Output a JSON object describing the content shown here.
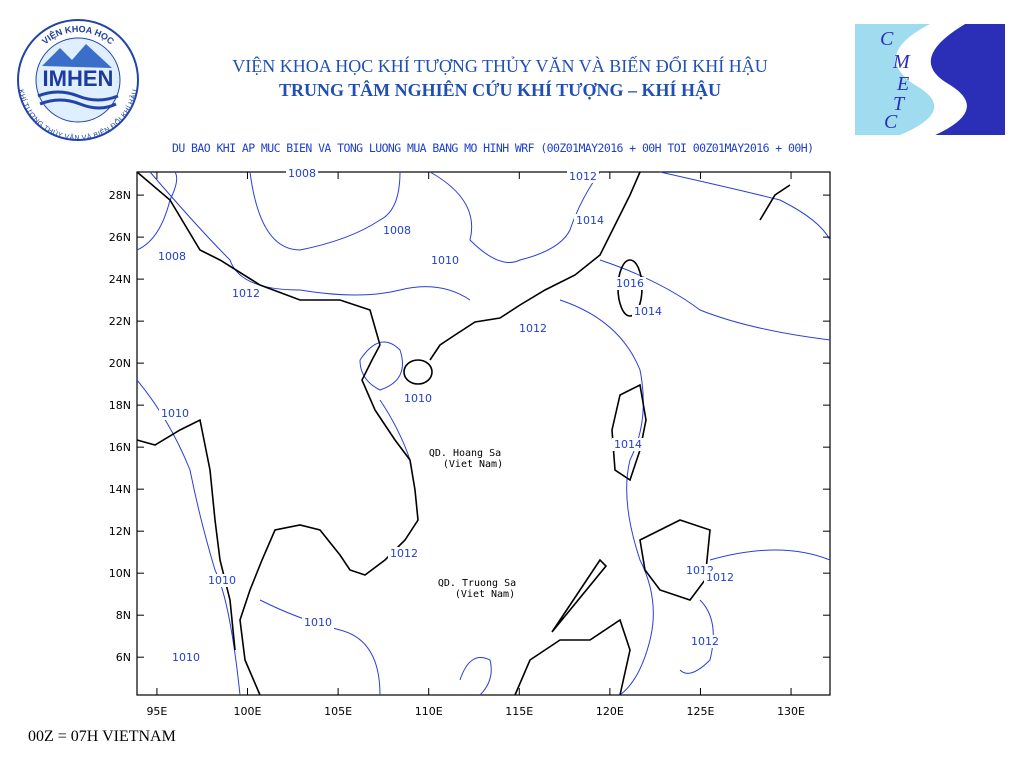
{
  "header": {
    "institute": "VIỆN KHOA HỌC KHÍ TƯỢNG THỦY VĂN VÀ BIẾN ĐỔI KHÍ HẬU",
    "center": "TRUNG TÂM NGHIÊN CỨU KHÍ TƯỢNG – KHÍ HẬU"
  },
  "logos": {
    "imhen": {
      "name": "IMHEN",
      "arc_top": "VIỆN KHOA HỌC",
      "arc_bottom": "KHÍ TƯỢNG THỦY VĂN VÀ BIẾN ĐỔI KHÍ HẬU"
    },
    "cmetc": [
      "C",
      "M",
      "E",
      "T",
      "C"
    ]
  },
  "map": {
    "title": "DU BAO KHI AP MUC BIEN VA TONG LUONG MUA BANG MO HINH WRF (00Z01MAY2016 + 00H TOI 00Z01MAY2016 + 00H)",
    "xlim": [
      93.9,
      132.15
    ],
    "ylim": [
      4.2,
      29.1
    ],
    "xticks": [
      {
        "value": 95,
        "label": "95E"
      },
      {
        "value": 100,
        "label": "100E"
      },
      {
        "value": 105,
        "label": "105E"
      },
      {
        "value": 110,
        "label": "110E"
      },
      {
        "value": 115,
        "label": "115E"
      },
      {
        "value": 120,
        "label": "120E"
      },
      {
        "value": 125,
        "label": "125E"
      },
      {
        "value": 130,
        "label": "130E"
      }
    ],
    "yticks": [
      {
        "value": 6,
        "label": "6N"
      },
      {
        "value": 8,
        "label": "8N"
      },
      {
        "value": 10,
        "label": "10N"
      },
      {
        "value": 12,
        "label": "12N"
      },
      {
        "value": 14,
        "label": "14N"
      },
      {
        "value": 16,
        "label": "16N"
      },
      {
        "value": 18,
        "label": "18N"
      },
      {
        "value": 20,
        "label": "20N"
      },
      {
        "value": 22,
        "label": "22N"
      },
      {
        "value": 24,
        "label": "24N"
      },
      {
        "value": 26,
        "label": "26N"
      },
      {
        "value": 28,
        "label": "28N"
      }
    ],
    "contour_labels": [
      1008,
      1012,
      1014,
      1008,
      1010,
      1008,
      1012,
      1016,
      1014,
      1012,
      1010,
      1010,
      1014,
      1012,
      1010,
      1010,
      1012,
      1012,
      1012,
      1010
    ],
    "places": [
      {
        "name": "QD. Hoang Sa",
        "country": "(Viet Nam)"
      },
      {
        "name": "QD. Truong Sa",
        "country": "(Viet Nam)"
      }
    ]
  },
  "footer": "00Z = 07H VIETNAM"
}
